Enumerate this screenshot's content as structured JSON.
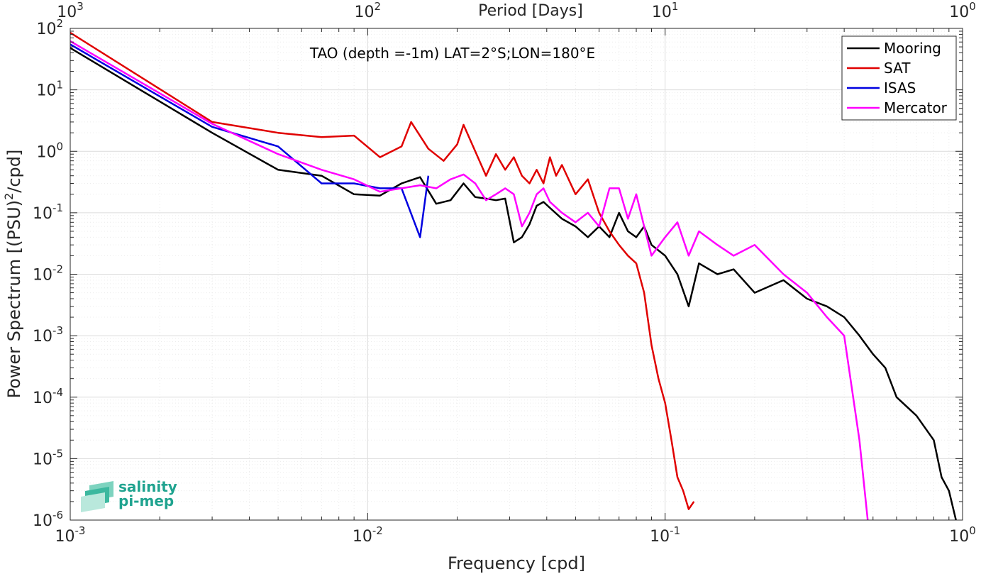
{
  "chart_data": {
    "type": "line",
    "title": "",
    "annotation": "TAO (depth =-1m) LAT=2°S;LON=180°E",
    "xlabel": "Frequency [cpd]",
    "ylabel_main": "Power Spectrum [(PSU)",
    "ylabel_sup": "2",
    "ylabel_tail": "/cpd]",
    "top_axis_label": "Period [Days]",
    "x_scale": "log",
    "y_scale": "log",
    "xlim": [
      0.001,
      1
    ],
    "ylim": [
      1e-06,
      100
    ],
    "grid": true,
    "legend_position": "top-right",
    "x_ticks": [
      {
        "value": 0.001,
        "base": "10",
        "exp": "-3"
      },
      {
        "value": 0.01,
        "base": "10",
        "exp": "-2"
      },
      {
        "value": 0.1,
        "base": "10",
        "exp": "-1"
      },
      {
        "value": 1,
        "base": "10",
        "exp": "0"
      }
    ],
    "y_ticks": [
      {
        "value": 1e-06,
        "base": "10",
        "exp": "-6"
      },
      {
        "value": 1e-05,
        "base": "10",
        "exp": "-5"
      },
      {
        "value": 0.0001,
        "base": "10",
        "exp": "-4"
      },
      {
        "value": 0.001,
        "base": "10",
        "exp": "-3"
      },
      {
        "value": 0.01,
        "base": "10",
        "exp": "-2"
      },
      {
        "value": 0.1,
        "base": "10",
        "exp": "-1"
      },
      {
        "value": 1,
        "base": "10",
        "exp": "0"
      },
      {
        "value": 10,
        "base": "10",
        "exp": "1"
      },
      {
        "value": 100,
        "base": "10",
        "exp": "2"
      }
    ],
    "top_ticks": [
      {
        "value": 0.001,
        "base": "10",
        "exp": "3"
      },
      {
        "value": 0.01,
        "base": "10",
        "exp": "2"
      },
      {
        "value": 0.1,
        "base": "10",
        "exp": "1"
      },
      {
        "value": 1,
        "base": "10",
        "exp": "0"
      }
    ],
    "series": [
      {
        "name": "Mooring",
        "color": "#000000",
        "x": [
          0.001,
          0.003,
          0.005,
          0.007,
          0.009,
          0.011,
          0.013,
          0.015,
          0.017,
          0.019,
          0.021,
          0.023,
          0.025,
          0.027,
          0.029,
          0.031,
          0.033,
          0.035,
          0.037,
          0.039,
          0.041,
          0.045,
          0.05,
          0.055,
          0.06,
          0.065,
          0.07,
          0.075,
          0.08,
          0.085,
          0.09,
          0.1,
          0.11,
          0.12,
          0.13,
          0.15,
          0.17,
          0.2,
          0.25,
          0.3,
          0.35,
          0.4,
          0.45,
          0.5,
          0.55,
          0.6,
          0.7,
          0.8,
          0.85,
          0.9,
          0.95
        ],
        "y": [
          48,
          2.0,
          0.5,
          0.4,
          0.2,
          0.19,
          0.3,
          0.38,
          0.14,
          0.16,
          0.3,
          0.18,
          0.17,
          0.16,
          0.17,
          0.033,
          0.04,
          0.065,
          0.13,
          0.15,
          0.12,
          0.08,
          0.06,
          0.04,
          0.06,
          0.04,
          0.1,
          0.05,
          0.04,
          0.06,
          0.03,
          0.02,
          0.01,
          0.003,
          0.015,
          0.01,
          0.012,
          0.005,
          0.008,
          0.004,
          0.003,
          0.002,
          0.001,
          0.0005,
          0.0003,
          0.0001,
          5e-05,
          2e-05,
          5e-06,
          3e-06,
          1e-06
        ]
      },
      {
        "name": "SAT",
        "color": "#e00000",
        "x": [
          0.001,
          0.003,
          0.005,
          0.007,
          0.009,
          0.011,
          0.013,
          0.014,
          0.016,
          0.018,
          0.02,
          0.021,
          0.023,
          0.025,
          0.027,
          0.029,
          0.031,
          0.033,
          0.035,
          0.037,
          0.039,
          0.041,
          0.043,
          0.045,
          0.05,
          0.055,
          0.06,
          0.065,
          0.07,
          0.075,
          0.08,
          0.085,
          0.09,
          0.095,
          0.1,
          0.105,
          0.11,
          0.115,
          0.12,
          0.125
        ],
        "y": [
          85,
          3.0,
          2.0,
          1.7,
          1.8,
          0.8,
          1.2,
          3.0,
          1.1,
          0.7,
          1.3,
          2.7,
          1.0,
          0.4,
          0.9,
          0.5,
          0.8,
          0.4,
          0.3,
          0.5,
          0.3,
          0.8,
          0.4,
          0.6,
          0.2,
          0.35,
          0.1,
          0.05,
          0.03,
          0.02,
          0.015,
          0.005,
          0.0007,
          0.0002,
          8e-05,
          2e-05,
          5e-06,
          3e-06,
          1.5e-06,
          2e-06
        ]
      },
      {
        "name": "ISAS",
        "color": "#0000e0",
        "x": [
          0.001,
          0.003,
          0.005,
          0.007,
          0.009,
          0.011,
          0.012,
          0.013,
          0.015,
          0.016
        ],
        "y": [
          55,
          2.5,
          1.2,
          0.3,
          0.3,
          0.25,
          0.25,
          0.25,
          0.04,
          0.4
        ]
      },
      {
        "name": "Mercator",
        "color": "#ff00ff",
        "x": [
          0.001,
          0.003,
          0.005,
          0.007,
          0.009,
          0.011,
          0.013,
          0.015,
          0.017,
          0.019,
          0.021,
          0.023,
          0.025,
          0.027,
          0.029,
          0.031,
          0.033,
          0.035,
          0.037,
          0.039,
          0.041,
          0.045,
          0.05,
          0.055,
          0.06,
          0.065,
          0.07,
          0.075,
          0.08,
          0.085,
          0.09,
          0.1,
          0.11,
          0.12,
          0.13,
          0.15,
          0.17,
          0.2,
          0.25,
          0.3,
          0.35,
          0.4,
          0.45,
          0.48
        ],
        "y": [
          62,
          2.8,
          0.9,
          0.5,
          0.35,
          0.22,
          0.25,
          0.28,
          0.25,
          0.35,
          0.42,
          0.3,
          0.16,
          0.2,
          0.25,
          0.2,
          0.06,
          0.1,
          0.2,
          0.25,
          0.15,
          0.1,
          0.07,
          0.1,
          0.06,
          0.25,
          0.25,
          0.08,
          0.2,
          0.06,
          0.02,
          0.04,
          0.07,
          0.02,
          0.05,
          0.03,
          0.02,
          0.03,
          0.01,
          0.005,
          0.002,
          0.001,
          2e-05,
          1e-06
        ]
      }
    ],
    "logo": {
      "line1": "salinity",
      "line2": "pi-mep"
    }
  }
}
